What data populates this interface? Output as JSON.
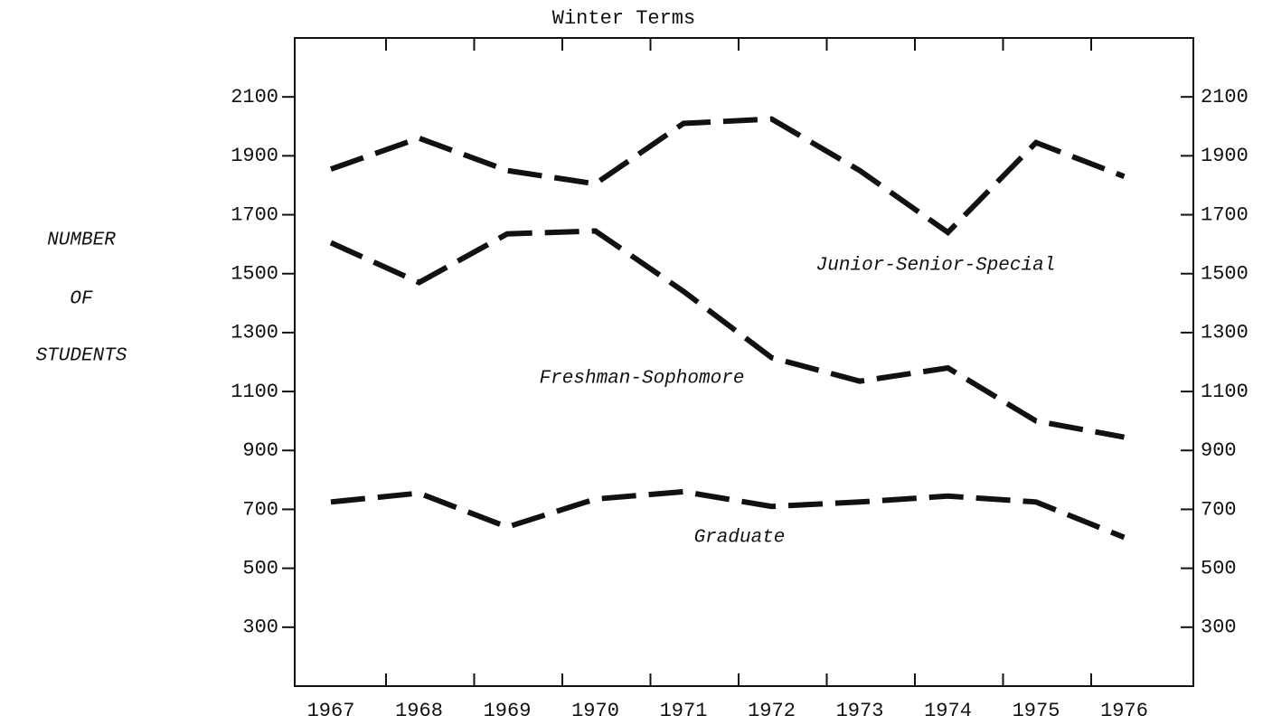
{
  "chart_data": {
    "type": "line",
    "title": "Winter Terms",
    "ylabel": [
      "NUMBER",
      "OF",
      "STUDENTS"
    ],
    "categories": [
      "1967",
      "1968",
      "1969",
      "1970",
      "1971",
      "1972",
      "1973",
      "1974",
      "1975",
      "1976"
    ],
    "series": [
      {
        "name": "Junior-Senior-Special",
        "color": "#111111",
        "values": [
          1855,
          1960,
          1850,
          1805,
          2010,
          2025,
          1850,
          1640,
          1945,
          1830
        ]
      },
      {
        "name": "Freshman-Sophomore",
        "color": "#111111",
        "values": [
          1605,
          1470,
          1635,
          1645,
          1440,
          1215,
          1135,
          1180,
          1000,
          945
        ]
      },
      {
        "name": "Graduate",
        "color": "#111111",
        "values": [
          725,
          755,
          640,
          735,
          760,
          710,
          725,
          745,
          725,
          605
        ]
      }
    ],
    "ylim": [
      100,
      2300
    ],
    "yticks": [
      300,
      500,
      700,
      900,
      1100,
      1300,
      1500,
      1700,
      1900,
      2100
    ],
    "y2lim": [
      100,
      2300
    ],
    "y2ticks": [
      300,
      500,
      700,
      900,
      1100,
      1300,
      1500,
      1700,
      1900,
      2100
    ],
    "dashed": true
  }
}
